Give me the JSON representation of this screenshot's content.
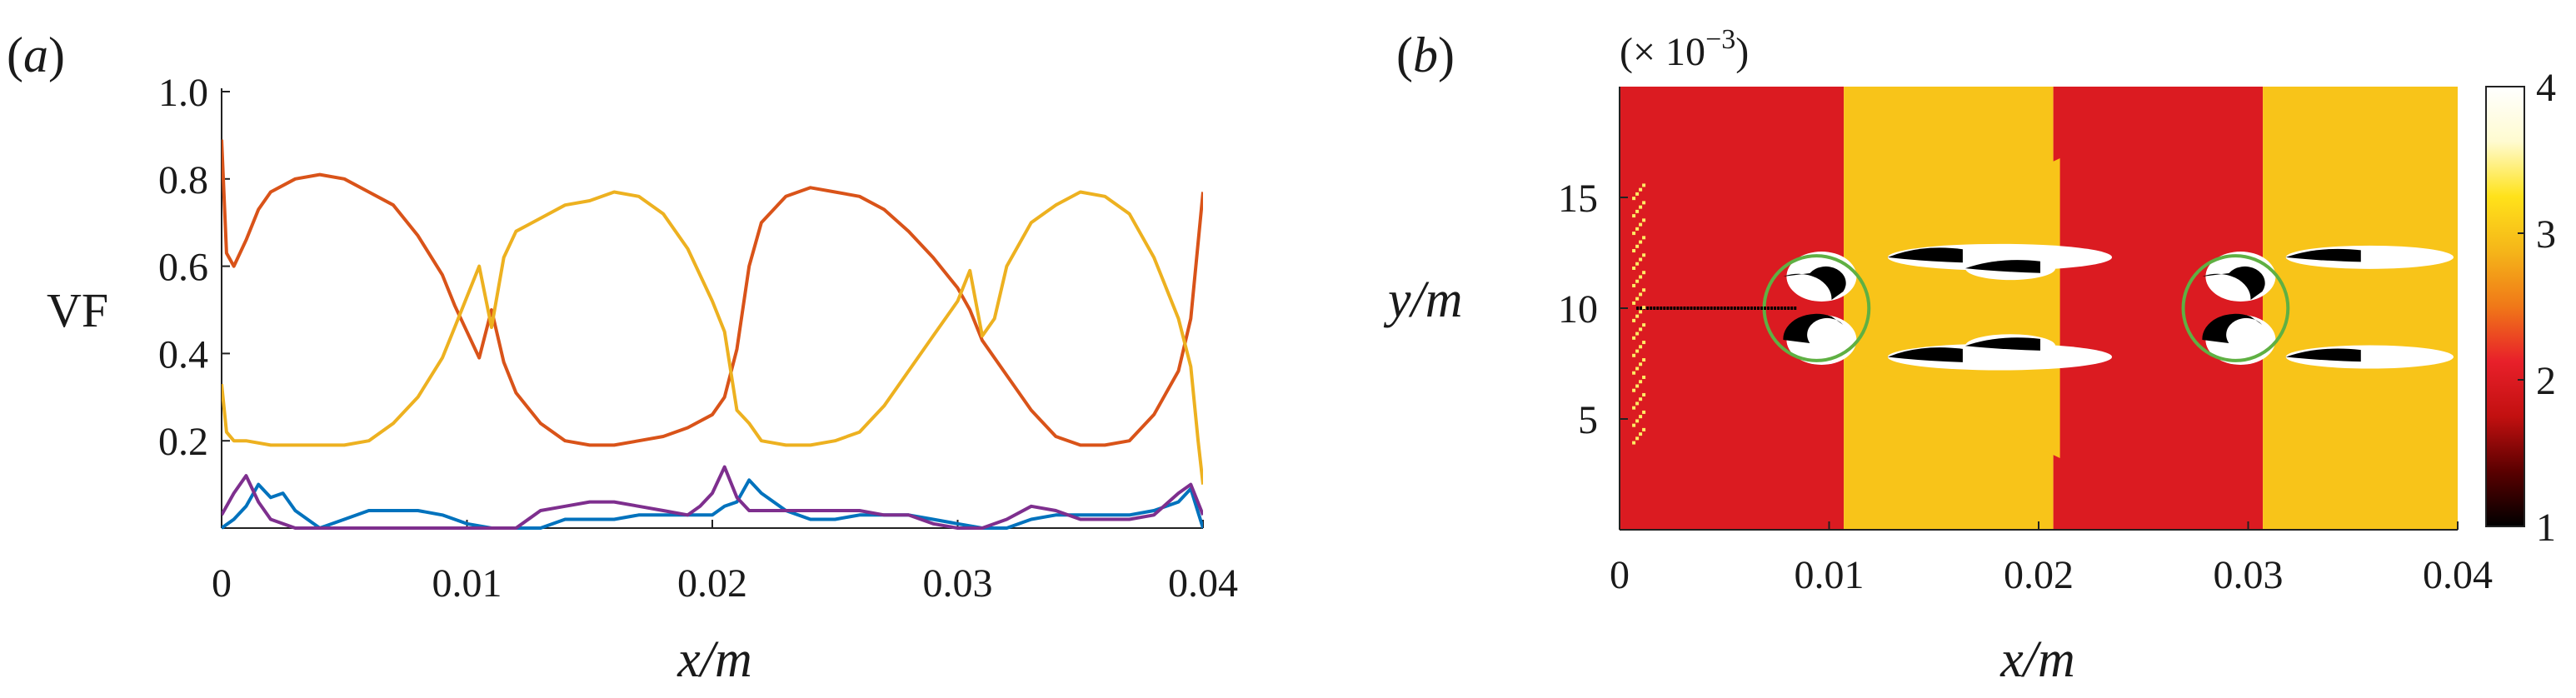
{
  "chart_data": [
    {
      "panel_label": "(a)",
      "type": "line",
      "xlabel": "x/m",
      "ylabel": "VF",
      "xlim": [
        0,
        0.04
      ],
      "ylim": [
        0,
        1.0
      ],
      "xticks": [
        {
          "v": 0,
          "label": "0"
        },
        {
          "v": 0.01,
          "label": "0.01"
        },
        {
          "v": 0.02,
          "label": "0.02"
        },
        {
          "v": 0.03,
          "label": "0.03"
        },
        {
          "v": 0.04,
          "label": "0.04"
        }
      ],
      "yticks": [
        {
          "v": 0.2,
          "label": "0.2"
        },
        {
          "v": 0.4,
          "label": "0.4"
        },
        {
          "v": 0.6,
          "label": "0.6"
        },
        {
          "v": 0.8,
          "label": "0.8"
        },
        {
          "v": 1.0,
          "label": "1.0"
        }
      ],
      "series": [
        {
          "name": "red-orange",
          "color": "#d95319",
          "x": [
            0,
            0.0002,
            0.0005,
            0.001,
            0.0015,
            0.002,
            0.003,
            0.004,
            0.005,
            0.006,
            0.007,
            0.008,
            0.009,
            0.0095,
            0.01,
            0.0105,
            0.011,
            0.0115,
            0.012,
            0.013,
            0.014,
            0.015,
            0.016,
            0.017,
            0.018,
            0.019,
            0.02,
            0.0205,
            0.021,
            0.0215,
            0.022,
            0.023,
            0.024,
            0.025,
            0.026,
            0.027,
            0.028,
            0.029,
            0.03,
            0.0305,
            0.031,
            0.032,
            0.033,
            0.034,
            0.035,
            0.036,
            0.037,
            0.038,
            0.039,
            0.0395,
            0.04
          ],
          "y": [
            0.89,
            0.63,
            0.6,
            0.66,
            0.73,
            0.77,
            0.8,
            0.81,
            0.8,
            0.77,
            0.74,
            0.67,
            0.58,
            0.51,
            0.45,
            0.39,
            0.5,
            0.38,
            0.31,
            0.24,
            0.2,
            0.19,
            0.19,
            0.2,
            0.21,
            0.23,
            0.26,
            0.3,
            0.41,
            0.6,
            0.7,
            0.76,
            0.78,
            0.77,
            0.76,
            0.73,
            0.68,
            0.62,
            0.55,
            0.5,
            0.43,
            0.35,
            0.27,
            0.21,
            0.19,
            0.19,
            0.2,
            0.26,
            0.36,
            0.48,
            0.77
          ]
        },
        {
          "name": "yellow",
          "color": "#edb120",
          "x": [
            0,
            0.0002,
            0.0005,
            0.001,
            0.002,
            0.003,
            0.004,
            0.005,
            0.006,
            0.007,
            0.008,
            0.009,
            0.0095,
            0.01,
            0.0105,
            0.011,
            0.0115,
            0.012,
            0.013,
            0.014,
            0.015,
            0.016,
            0.017,
            0.018,
            0.019,
            0.02,
            0.0205,
            0.021,
            0.0215,
            0.022,
            0.023,
            0.024,
            0.025,
            0.026,
            0.027,
            0.028,
            0.029,
            0.03,
            0.0305,
            0.031,
            0.0315,
            0.032,
            0.033,
            0.034,
            0.035,
            0.036,
            0.037,
            0.038,
            0.039,
            0.0395,
            0.0398,
            0.04
          ],
          "y": [
            0.33,
            0.22,
            0.2,
            0.2,
            0.19,
            0.19,
            0.19,
            0.19,
            0.2,
            0.24,
            0.3,
            0.39,
            0.46,
            0.53,
            0.6,
            0.46,
            0.62,
            0.68,
            0.71,
            0.74,
            0.75,
            0.77,
            0.76,
            0.72,
            0.64,
            0.52,
            0.45,
            0.27,
            0.24,
            0.2,
            0.19,
            0.19,
            0.2,
            0.22,
            0.28,
            0.36,
            0.44,
            0.52,
            0.59,
            0.44,
            0.48,
            0.6,
            0.7,
            0.74,
            0.77,
            0.76,
            0.72,
            0.62,
            0.48,
            0.37,
            0.2,
            0.1
          ]
        },
        {
          "name": "blue",
          "color": "#0072bd",
          "x": [
            0,
            0.0005,
            0.001,
            0.0015,
            0.002,
            0.0025,
            0.003,
            0.004,
            0.005,
            0.006,
            0.007,
            0.008,
            0.009,
            0.01,
            0.011,
            0.012,
            0.013,
            0.014,
            0.015,
            0.016,
            0.017,
            0.018,
            0.019,
            0.02,
            0.0205,
            0.021,
            0.0215,
            0.022,
            0.023,
            0.024,
            0.025,
            0.026,
            0.027,
            0.028,
            0.029,
            0.03,
            0.031,
            0.032,
            0.033,
            0.034,
            0.035,
            0.036,
            0.037,
            0.038,
            0.039,
            0.0395,
            0.04
          ],
          "y": [
            0.0,
            0.02,
            0.05,
            0.1,
            0.07,
            0.08,
            0.04,
            0.0,
            0.02,
            0.04,
            0.04,
            0.04,
            0.03,
            0.01,
            0.0,
            0.0,
            0.0,
            0.02,
            0.02,
            0.02,
            0.03,
            0.03,
            0.03,
            0.03,
            0.05,
            0.06,
            0.11,
            0.08,
            0.04,
            0.02,
            0.02,
            0.03,
            0.03,
            0.03,
            0.02,
            0.01,
            0.0,
            0.0,
            0.02,
            0.03,
            0.03,
            0.03,
            0.03,
            0.04,
            0.06,
            0.09,
            0.0
          ]
        },
        {
          "name": "purple",
          "color": "#7e2f8e",
          "x": [
            0,
            0.0005,
            0.001,
            0.0015,
            0.002,
            0.003,
            0.004,
            0.005,
            0.006,
            0.007,
            0.008,
            0.009,
            0.01,
            0.011,
            0.012,
            0.013,
            0.014,
            0.015,
            0.016,
            0.017,
            0.018,
            0.019,
            0.0195,
            0.02,
            0.0205,
            0.021,
            0.0215,
            0.022,
            0.023,
            0.024,
            0.025,
            0.026,
            0.027,
            0.028,
            0.029,
            0.03,
            0.031,
            0.032,
            0.033,
            0.034,
            0.035,
            0.036,
            0.037,
            0.038,
            0.039,
            0.0395,
            0.04
          ],
          "y": [
            0.03,
            0.08,
            0.12,
            0.06,
            0.02,
            0.0,
            0.0,
            0.0,
            0.0,
            0.0,
            0.0,
            0.0,
            0.0,
            0.0,
            0.0,
            0.04,
            0.05,
            0.06,
            0.06,
            0.05,
            0.04,
            0.03,
            0.05,
            0.08,
            0.14,
            0.07,
            0.04,
            0.04,
            0.04,
            0.04,
            0.04,
            0.04,
            0.03,
            0.03,
            0.01,
            0.0,
            0.0,
            0.02,
            0.05,
            0.04,
            0.02,
            0.02,
            0.02,
            0.03,
            0.08,
            0.1,
            0.03
          ]
        }
      ]
    },
    {
      "panel_label": "(b)",
      "type": "heatmap",
      "xlabel": "x/m",
      "ylabel": "y/m",
      "y_multiplier": "(× 10",
      "y_multiplier_exp": "−3",
      "y_multiplier_close": ")",
      "xlim": [
        0,
        0.04
      ],
      "ylim": [
        0,
        0.02
      ],
      "xticks": [
        {
          "v": 0,
          "label": "0"
        },
        {
          "v": 0.01,
          "label": "0.01"
        },
        {
          "v": 0.02,
          "label": "0.02"
        },
        {
          "v": 0.03,
          "label": "0.03"
        },
        {
          "v": 0.04,
          "label": "0.04"
        }
      ],
      "yticks": [
        {
          "v": 0.005,
          "label": "5"
        },
        {
          "v": 0.01,
          "label": "10"
        },
        {
          "v": 0.015,
          "label": "15"
        }
      ],
      "colorbar": {
        "range": [
          1,
          4
        ],
        "ticks": [
          {
            "v": 1,
            "label": "1"
          },
          {
            "v": 2,
            "label": "2"
          },
          {
            "v": 3,
            "label": "3"
          },
          {
            "v": 4,
            "label": "4"
          }
        ],
        "stops": [
          "#000000",
          "#5a0000",
          "#c21010",
          "#e8202a",
          "#f07818",
          "#f5b519",
          "#ffe21a",
          "#fffbd0",
          "#ffffff"
        ]
      },
      "material_bands": [
        {
          "x0": 0,
          "x1": 0.0107,
          "phase": 2
        },
        {
          "x0": 0.0107,
          "x1": 0.0207,
          "phase": 3
        },
        {
          "x0": 0.0207,
          "x1": 0.0307,
          "phase": 2
        },
        {
          "x0": 0.0307,
          "x1": 0.04,
          "phase": 3
        }
      ],
      "circles": [
        {
          "cx": 0.0094,
          "cy": 0.01,
          "r": 0.0025,
          "color": "#5fb043"
        },
        {
          "cx": 0.0294,
          "cy": 0.01,
          "r": 0.0025,
          "color": "#5fb043"
        }
      ]
    }
  ]
}
